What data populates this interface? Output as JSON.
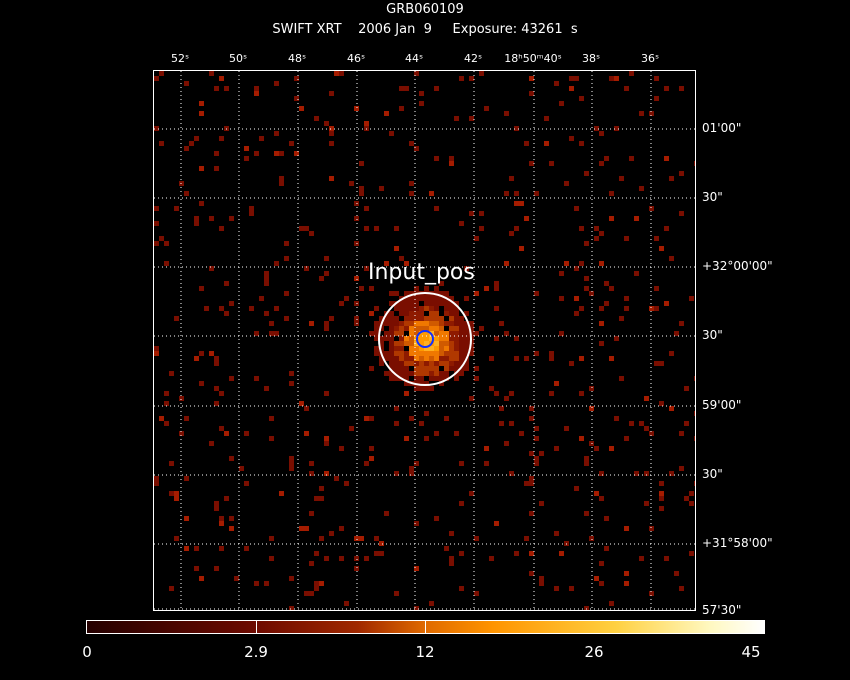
{
  "title": "GRB060109",
  "subtitle": "SWIFT XRT    2006 Jan  9     Exposure: 43261  s",
  "ra_ticks": [
    "52ˢ",
    "50ˢ",
    "48ˢ",
    "46ˢ",
    "44ˢ",
    "42ˢ",
    "18ʰ50ᵐ40ˢ",
    "38ˢ",
    "36ˢ"
  ],
  "dec_ticks": [
    "01'00\"",
    "30\"",
    "+32°00'00\"",
    "30\"",
    "59'00\"",
    "30\"",
    "+31°58'00\"",
    "57'30\""
  ],
  "source_label": "Input_pos",
  "colorbar": {
    "ticks": [
      "0",
      "2.9",
      "12",
      "26",
      "45"
    ]
  },
  "colors": {
    "outer_circle": "#ffffff",
    "inner_circle": "#1030ff",
    "grid": "#ffffff",
    "background": "#000000"
  }
}
